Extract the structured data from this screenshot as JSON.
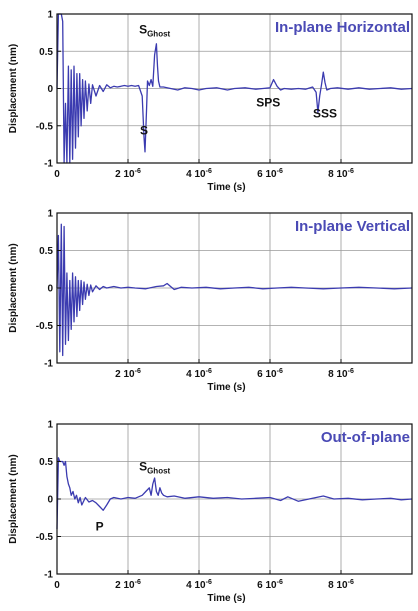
{
  "figure": {
    "colors": {
      "trace": "#3b3bb0",
      "title": "#4a4ab5",
      "grid": "#9a9a9a",
      "axis": "#111111"
    }
  },
  "chart_data": [
    {
      "type": "line",
      "title": "In-plane Horizontal",
      "xlabel": "Time (s)",
      "ylabel": "Displacement (nm)",
      "xlim": [
        0,
        1e-05
      ],
      "ylim": [
        -1,
        1
      ],
      "grid": true,
      "x_ticks": [
        {
          "value": 0,
          "mant": "0",
          "exp": ""
        },
        {
          "value": 2e-06,
          "mant": "2 10",
          "exp": "-6"
        },
        {
          "value": 4e-06,
          "mant": "4 10",
          "exp": "-6"
        },
        {
          "value": 6e-06,
          "mant": "6 10",
          "exp": "-6"
        },
        {
          "value": 8e-06,
          "mant": "8 10",
          "exp": "-6"
        }
      ],
      "y_ticks": [
        {
          "value": 1,
          "label": "1"
        },
        {
          "value": 0.5,
          "label": "0.5"
        },
        {
          "value": 0,
          "label": "0"
        },
        {
          "value": -0.5,
          "label": "-0.5"
        },
        {
          "value": -1,
          "label": "-1"
        }
      ],
      "annotations": [
        {
          "text": "S",
          "sub": "Ghost",
          "x": 2.75e-06,
          "y": 0.74
        },
        {
          "text": "S",
          "sub": "",
          "x": 2.45e-06,
          "y": -0.62
        },
        {
          "text": "SPS",
          "sub": "",
          "x": 5.95e-06,
          "y": -0.24
        },
        {
          "text": "SSS",
          "sub": "",
          "x": 7.55e-06,
          "y": -0.39
        }
      ],
      "series": [
        {
          "x": [
            0,
            4e-08,
            8e-08,
            1.2e-07,
            1.6e-07,
            2e-07,
            2.4e-07,
            2.8e-07,
            3.2e-07,
            3.6e-07,
            4e-07,
            4.4e-07,
            4.8e-07,
            5.2e-07,
            5.6e-07,
            6e-07,
            6.4e-07,
            6.8e-07,
            7.2e-07,
            7.6e-07,
            8e-07,
            8.5e-07,
            9e-07,
            9.5e-07,
            1e-06,
            1.1e-06,
            1.2e-06,
            1.3e-06,
            1.4e-06,
            1.5e-06,
            1.6e-06,
            1.7e-06,
            1.8e-06,
            1.9e-06,
            2e-06,
            2.1e-06,
            2.2e-06,
            2.3e-06,
            2.4e-06,
            2.45e-06,
            2.48e-06,
            2.52e-06,
            2.55e-06,
            2.6e-06,
            2.65e-06,
            2.7e-06,
            2.75e-06,
            2.8e-06,
            2.83e-06,
            2.86e-06,
            2.9e-06,
            3e-06,
            3.2e-06,
            3.4e-06,
            3.6e-06,
            3.8e-06,
            4e-06,
            4.2e-06,
            4.5e-06,
            4.8e-06,
            5e-06,
            5.3e-06,
            5.6e-06,
            5.8e-06,
            6e-06,
            6.1e-06,
            6.2e-06,
            6.3e-06,
            6.4e-06,
            6.6e-06,
            6.8e-06,
            7e-06,
            7.2e-06,
            7.3e-06,
            7.35e-06,
            7.4e-06,
            7.45e-06,
            7.5e-06,
            7.55e-06,
            7.6e-06,
            7.7e-06,
            7.9e-06,
            8.2e-06,
            8.5e-06,
            8.8e-06,
            9.1e-06,
            9.4e-06,
            9.7e-06,
            1e-05
          ],
          "y": [
            0,
            1,
            1,
            1,
            0.9,
            -1,
            -0.2,
            -1,
            0.3,
            -1,
            0.25,
            -0.95,
            0.3,
            -0.8,
            0.2,
            -0.65,
            0.2,
            -0.5,
            0.12,
            -0.4,
            0.1,
            -0.3,
            0.06,
            -0.2,
            0.05,
            -0.1,
            0.04,
            -0.04,
            0.05,
            0.01,
            0.03,
            0.02,
            0.03,
            0.04,
            0.03,
            0.04,
            0.03,
            0.04,
            -0.1,
            -0.65,
            -0.85,
            -0.3,
            0.1,
            0.04,
            0.12,
            0.03,
            0.45,
            0.6,
            0.3,
            0.1,
            0.02,
            0.02,
            0,
            -0.02,
            0.01,
            0,
            -0.02,
            0,
            0.01,
            -0.02,
            0,
            0.01,
            -0.01,
            0,
            0.01,
            0.12,
            0.03,
            -0.02,
            0,
            -0.01,
            0,
            -0.01,
            0.02,
            -0.05,
            -0.32,
            -0.1,
            0.05,
            0.22,
            0.08,
            -0.02,
            0,
            0.01,
            -0.01,
            0.01,
            -0.01,
            0,
            0.01,
            -0.01,
            0
          ]
        }
      ]
    },
    {
      "type": "line",
      "title": "In-plane Vertical",
      "xlabel": "Time (s)",
      "ylabel": "Displacement (nm)",
      "xlim": [
        0,
        1e-05
      ],
      "ylim": [
        -1,
        1
      ],
      "grid": true,
      "x_ticks": [
        {
          "value": 2e-06,
          "mant": "2 10",
          "exp": "-6"
        },
        {
          "value": 4e-06,
          "mant": "4 10",
          "exp": "-6"
        },
        {
          "value": 6e-06,
          "mant": "6 10",
          "exp": "-6"
        },
        {
          "value": 8e-06,
          "mant": "8 10",
          "exp": "-6"
        }
      ],
      "y_ticks": [
        {
          "value": 1,
          "label": "1"
        },
        {
          "value": 0.5,
          "label": "0.5"
        },
        {
          "value": 0,
          "label": "0"
        },
        {
          "value": -0.5,
          "label": "-0.5"
        },
        {
          "value": -1,
          "label": "-1"
        }
      ],
      "annotations": [],
      "series": [
        {
          "x": [
            0,
            4e-08,
            8e-08,
            1.2e-07,
            1.6e-07,
            2e-07,
            2.4e-07,
            2.8e-07,
            3.2e-07,
            3.6e-07,
            4e-07,
            4.4e-07,
            4.8e-07,
            5.2e-07,
            5.6e-07,
            6e-07,
            6.4e-07,
            6.8e-07,
            7.2e-07,
            7.6e-07,
            8e-07,
            8.5e-07,
            9e-07,
            9.5e-07,
            1e-06,
            1.1e-06,
            1.2e-06,
            1.3e-06,
            1.4e-06,
            1.6e-06,
            1.8e-06,
            2e-06,
            2.2e-06,
            2.5e-06,
            2.8e-06,
            3e-06,
            3.1e-06,
            3.2e-06,
            3.3e-06,
            3.5e-06,
            3.8e-06,
            4.2e-06,
            4.6e-06,
            5e-06,
            5.4e-06,
            5.8e-06,
            6.2e-06,
            6.6e-06,
            7e-06,
            7.5e-06,
            8e-06,
            8.5e-06,
            9e-06,
            9.5e-06,
            1e-05
          ],
          "y": [
            0,
            0.7,
            -0.85,
            0.85,
            -0.9,
            0.82,
            -0.75,
            0.2,
            -0.7,
            0.1,
            -0.55,
            0.2,
            -0.45,
            0.15,
            -0.38,
            0.1,
            -0.3,
            0.1,
            -0.22,
            0.08,
            -0.15,
            0.05,
            -0.1,
            0.04,
            -0.05,
            0.03,
            -0.02,
            0.02,
            0,
            0.02,
            0,
            0.01,
            0,
            -0.01,
            0.02,
            0.03,
            0.06,
            0.02,
            -0.02,
            0.01,
            0,
            0.01,
            -0.01,
            0,
            0.01,
            -0.01,
            0,
            0.01,
            0,
            -0.01,
            0,
            0.01,
            0,
            -0.01,
            0
          ]
        }
      ]
    },
    {
      "type": "line",
      "title": "Out-of-plane",
      "xlabel": "Time (s)",
      "ylabel": "Displacement (nm)",
      "xlim": [
        0,
        1e-05
      ],
      "ylim": [
        -1,
        1
      ],
      "grid": true,
      "x_ticks": [
        {
          "value": 0,
          "mant": "0",
          "exp": ""
        },
        {
          "value": 2e-06,
          "mant": "2 10",
          "exp": "-6"
        },
        {
          "value": 4e-06,
          "mant": "4 10",
          "exp": "-6"
        },
        {
          "value": 6e-06,
          "mant": "6 10",
          "exp": "-6"
        },
        {
          "value": 8e-06,
          "mant": "8 10",
          "exp": "-6"
        }
      ],
      "y_ticks": [
        {
          "value": 1,
          "label": "1"
        },
        {
          "value": 0.5,
          "label": "0.5"
        },
        {
          "value": 0,
          "label": "0"
        },
        {
          "value": -0.5,
          "label": "-0.5"
        },
        {
          "value": -1,
          "label": "-1"
        }
      ],
      "annotations": [
        {
          "text": "S",
          "sub": "Ghost",
          "x": 2.75e-06,
          "y": 0.38
        },
        {
          "text": "P",
          "sub": "",
          "x": 1.2e-06,
          "y": -0.42
        }
      ],
      "series": [
        {
          "x": [
            0,
            4e-08,
            8e-08,
            1.2e-07,
            1.6e-07,
            2e-07,
            2.4e-07,
            2.8e-07,
            3.2e-07,
            3.6e-07,
            4e-07,
            4.5e-07,
            5e-07,
            5.5e-07,
            6e-07,
            6.5e-07,
            7e-07,
            8e-07,
            9e-07,
            1e-06,
            1.1e-06,
            1.2e-06,
            1.3e-06,
            1.4e-06,
            1.5e-06,
            1.6e-06,
            1.8e-06,
            2e-06,
            2.2e-06,
            2.4e-06,
            2.5e-06,
            2.6e-06,
            2.65e-06,
            2.7e-06,
            2.75e-06,
            2.8e-06,
            2.85e-06,
            2.9e-06,
            2.95e-06,
            3e-06,
            3.1e-06,
            3.3e-06,
            3.6e-06,
            4e-06,
            4.4e-06,
            4.8e-06,
            5.2e-06,
            5.6e-06,
            6e-06,
            6.3e-06,
            6.5e-06,
            6.8e-06,
            7.2e-06,
            7.5e-06,
            7.8e-06,
            8.2e-06,
            8.6e-06,
            9e-06,
            9.4e-06,
            9.7e-06,
            1e-05
          ],
          "y": [
            -0.4,
            0.55,
            0.5,
            0.5,
            0.5,
            0.45,
            0.5,
            0.3,
            0.2,
            0.15,
            0.05,
            0.1,
            0,
            0.05,
            -0.05,
            0.02,
            -0.08,
            0.02,
            -0.04,
            -0.02,
            -0.05,
            -0.1,
            -0.15,
            -0.08,
            0,
            0.02,
            0,
            0.02,
            0.01,
            0.05,
            0.1,
            0.15,
            0.05,
            0.2,
            0.28,
            0.1,
            0.05,
            0.15,
            0.08,
            0.05,
            0.03,
            0.04,
            0.01,
            0.03,
            0.01,
            0.02,
            0,
            0.01,
            0.02,
            -0.02,
            0.03,
            -0.03,
            0.01,
            0.04,
            0,
            0.01,
            -0.01,
            0,
            0.01,
            -0.01,
            0
          ]
        }
      ]
    }
  ]
}
